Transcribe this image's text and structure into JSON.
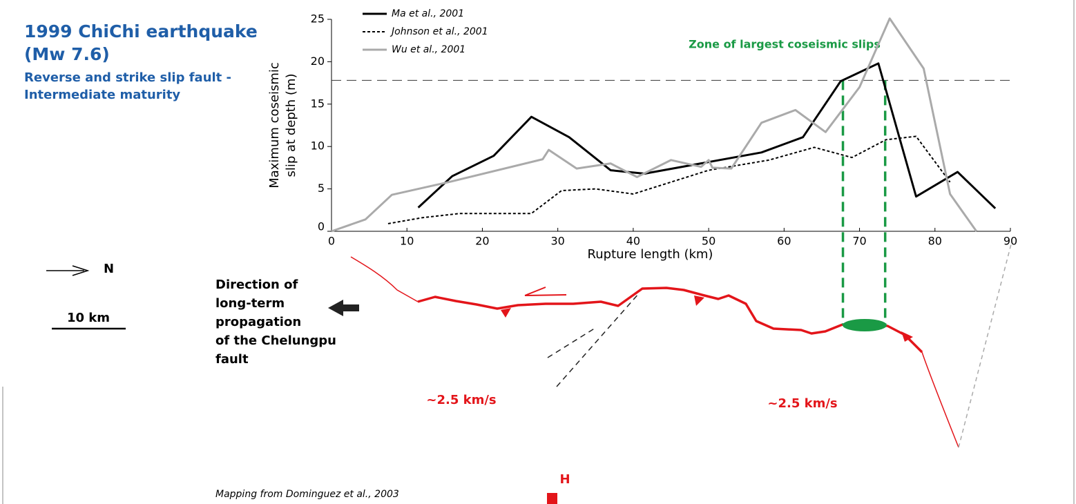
{
  "header": {
    "title_lines": [
      "1999 ChiChi earthquake",
      "(Mw 7.6)"
    ],
    "subtitle_lines": [
      "Reverse and strike slip fault -",
      "Intermediate maturity"
    ]
  },
  "chart_data": {
    "type": "line",
    "xlabel": "Rupture length (km)",
    "ylabel_lines": [
      "Maximum coseismic",
      "slip at depth (m)"
    ],
    "xlim": [
      0,
      90
    ],
    "xticks": [
      0,
      10,
      20,
      30,
      40,
      50,
      60,
      70,
      80,
      90
    ],
    "ylim": [
      0,
      25
    ],
    "yticks": [
      0,
      5,
      10,
      15,
      20,
      25
    ],
    "series": [
      {
        "name": "Ma et al., 2001",
        "color": "#000000",
        "dash": "solid",
        "x": [
          11.5,
          16,
          21.5,
          26.5,
          31.5,
          37,
          41.5,
          57,
          62.5,
          67.5,
          72.5,
          77.5,
          83,
          88
        ],
        "values": [
          2.8,
          6.5,
          8.9,
          13.5,
          11.1,
          7.2,
          6.8,
          9.3,
          11.1,
          17.7,
          19.8,
          4.1,
          7.0,
          2.7
        ]
      },
      {
        "name": "Johnson et al., 2001",
        "color": "#000000",
        "dash": "dotted",
        "x": [
          7.5,
          12,
          17,
          26.5,
          30.5,
          35,
          40,
          50,
          58,
          64,
          69,
          73.5,
          77.5,
          82
        ],
        "values": [
          0.9,
          1.6,
          2.1,
          2.1,
          4.8,
          5.0,
          4.4,
          7.2,
          8.4,
          9.9,
          8.7,
          10.8,
          11.2,
          5.8
        ]
      },
      {
        "name": "Wu et al., 2001",
        "color": "#aaaaaa",
        "dash": "solid",
        "x": [
          0,
          4.5,
          8,
          16,
          28,
          28.8,
          32.5,
          37,
          40.5,
          45,
          49,
          50,
          50.5,
          53,
          57,
          61.5,
          65.5,
          70,
          74,
          78.5,
          82,
          85.5
        ],
        "values": [
          0,
          1.4,
          4.3,
          5.9,
          8.5,
          9.6,
          7.4,
          8.0,
          6.4,
          8.4,
          7.6,
          8.4,
          7.5,
          7.4,
          12.8,
          14.3,
          11.7,
          17.0,
          25.1,
          19.2,
          4.4,
          0
        ]
      }
    ],
    "reference_line": 17.8,
    "zone": [
      67.8,
      73.4
    ],
    "zone_label": "Zone of largest coseismic slips"
  },
  "map": {
    "north": "N",
    "scale": "10 km",
    "direction_lines": [
      "Direction of",
      "long-term",
      "propagation",
      "of the Chelungpu",
      "fault"
    ],
    "speed_left": "~2.5 km/s",
    "speed_right": "~2.5 km/s",
    "hypocenter": "H",
    "source": "Mapping from Dominguez et al., 2003"
  }
}
